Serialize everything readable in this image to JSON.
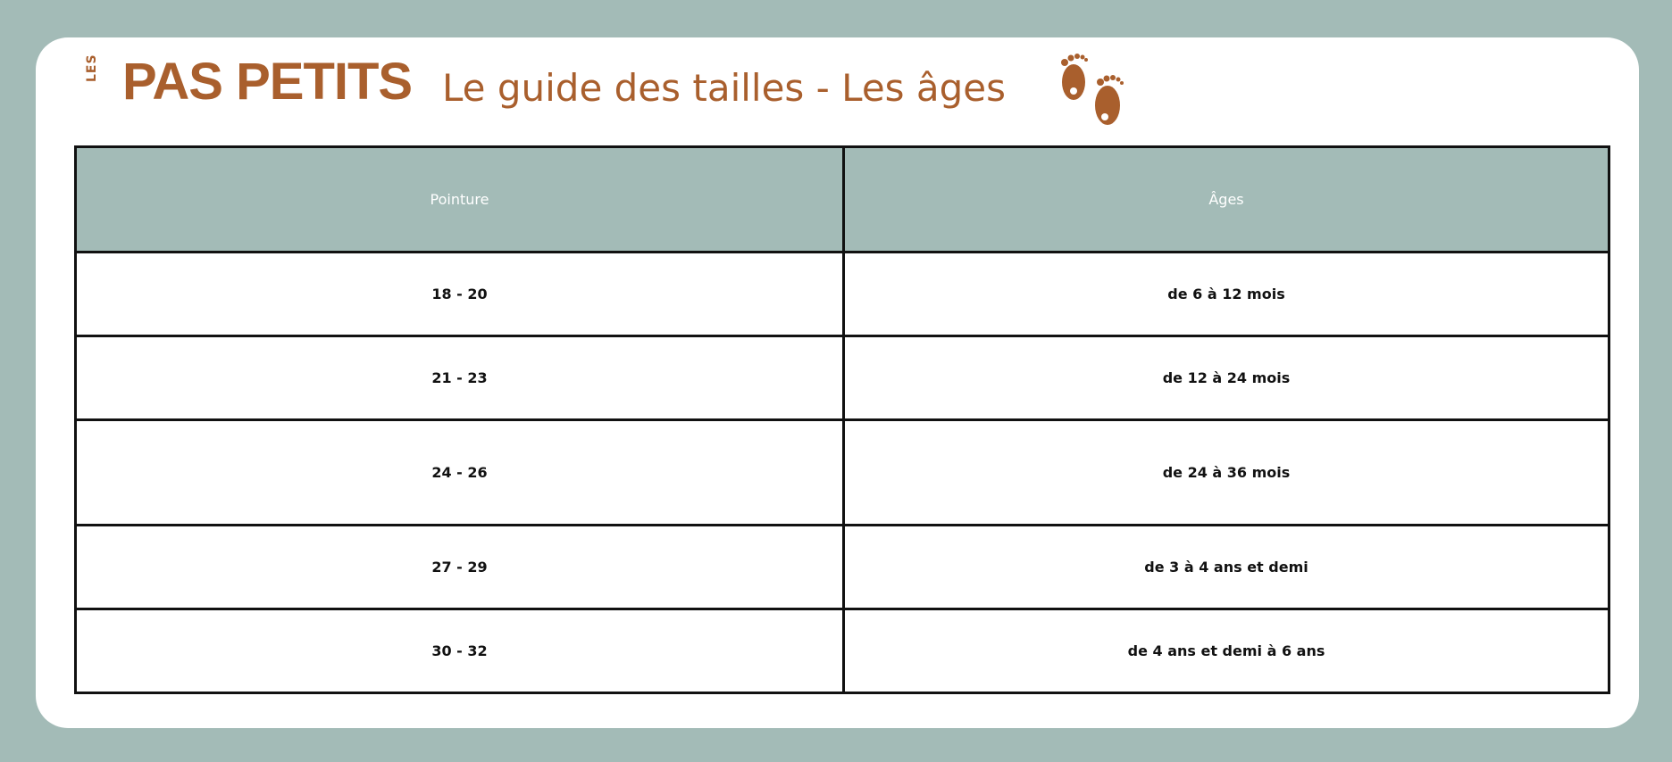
{
  "brand": {
    "les": "LES",
    "name": "PAS PETITS",
    "color": "#a95f2d"
  },
  "title": "Le guide des tailles - Les âges",
  "icon": "baby-feet-icon",
  "table": {
    "headers": [
      "Pointure",
      "Âges"
    ],
    "header_color": "#a3bbb7",
    "rows": [
      {
        "size": "18 - 20",
        "age": "de 6 à 12 mois"
      },
      {
        "size": "21 - 23",
        "age": "de 12 à 24 mois"
      },
      {
        "size": "24 - 26",
        "age": "de 24 à 36 mois"
      },
      {
        "size": "27 - 29",
        "age": "de 3 à 4 ans et demi"
      },
      {
        "size": "30 - 32",
        "age": "de 4 ans et demi à 6 ans"
      }
    ]
  }
}
